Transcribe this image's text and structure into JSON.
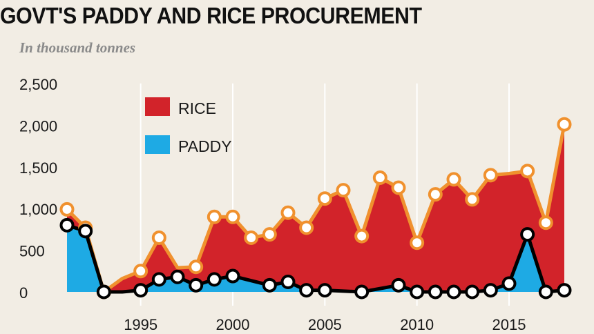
{
  "chart_data": {
    "type": "area",
    "title": "GOVT'S PADDY AND RICE PROCUREMENT",
    "subtitle": "In thousand tonnes",
    "xlabel": "",
    "ylabel": "",
    "ylim": [
      0,
      2500
    ],
    "xlim": [
      1991,
      2018
    ],
    "yticks": [
      {
        "value": 0,
        "label": "0"
      },
      {
        "value": 500,
        "label": "500"
      },
      {
        "value": 1000,
        "label": "1,000"
      },
      {
        "value": 1500,
        "label": "1,500"
      },
      {
        "value": 2000,
        "label": "2,000"
      },
      {
        "value": 2500,
        "label": "2,500"
      }
    ],
    "xticks": [
      1995,
      2000,
      2005,
      2010,
      2015
    ],
    "grid": "vertical",
    "legend_position": "top-left",
    "series": [
      {
        "name": "RICE",
        "color": "#d2232a",
        "line_color": "#f0912e",
        "points": [
          {
            "x": 1991,
            "y": 990,
            "marker": true
          },
          {
            "x": 1992,
            "y": 770,
            "marker": true
          },
          {
            "x": 1993,
            "y": 0,
            "marker": true
          },
          {
            "x": 1994,
            "y": 160,
            "marker": false
          },
          {
            "x": 1995,
            "y": 250,
            "marker": true
          },
          {
            "x": 1996,
            "y": 650,
            "marker": true
          },
          {
            "x": 1997,
            "y": 290,
            "marker": false
          },
          {
            "x": 1998,
            "y": 300,
            "marker": true
          },
          {
            "x": 1999,
            "y": 900,
            "marker": true
          },
          {
            "x": 2000,
            "y": 900,
            "marker": true
          },
          {
            "x": 2001,
            "y": 650,
            "marker": true
          },
          {
            "x": 2002,
            "y": 690,
            "marker": true
          },
          {
            "x": 2003,
            "y": 950,
            "marker": true
          },
          {
            "x": 2004,
            "y": 770,
            "marker": true
          },
          {
            "x": 2005,
            "y": 1120,
            "marker": true
          },
          {
            "x": 2006,
            "y": 1220,
            "marker": true
          },
          {
            "x": 2007,
            "y": 670,
            "marker": true
          },
          {
            "x": 2008,
            "y": 1370,
            "marker": true
          },
          {
            "x": 2009,
            "y": 1250,
            "marker": true
          },
          {
            "x": 2010,
            "y": 590,
            "marker": true
          },
          {
            "x": 2011,
            "y": 1170,
            "marker": true
          },
          {
            "x": 2012,
            "y": 1350,
            "marker": true
          },
          {
            "x": 2013,
            "y": 1110,
            "marker": true
          },
          {
            "x": 2014,
            "y": 1400,
            "marker": true
          },
          {
            "x": 2015,
            "y": 1420,
            "marker": false
          },
          {
            "x": 2016,
            "y": 1450,
            "marker": true
          },
          {
            "x": 2017,
            "y": 830,
            "marker": true
          },
          {
            "x": 2018,
            "y": 2010,
            "marker": true
          }
        ]
      },
      {
        "name": "PADDY",
        "color": "#1eaae4",
        "line_color": "#000000",
        "points": [
          {
            "x": 1991,
            "y": 800,
            "marker": true
          },
          {
            "x": 1992,
            "y": 730,
            "marker": true
          },
          {
            "x": 1993,
            "y": 0,
            "marker": true
          },
          {
            "x": 1994,
            "y": 0,
            "marker": false
          },
          {
            "x": 1995,
            "y": 20,
            "marker": true
          },
          {
            "x": 1996,
            "y": 150,
            "marker": true
          },
          {
            "x": 1997,
            "y": 180,
            "marker": true
          },
          {
            "x": 1998,
            "y": 80,
            "marker": true
          },
          {
            "x": 1999,
            "y": 150,
            "marker": true
          },
          {
            "x": 2000,
            "y": 190,
            "marker": true
          },
          {
            "x": 2002,
            "y": 80,
            "marker": true
          },
          {
            "x": 2003,
            "y": 120,
            "marker": true
          },
          {
            "x": 2004,
            "y": 20,
            "marker": true
          },
          {
            "x": 2005,
            "y": 20,
            "marker": true
          },
          {
            "x": 2007,
            "y": 0,
            "marker": true
          },
          {
            "x": 2009,
            "y": 80,
            "marker": true
          },
          {
            "x": 2010,
            "y": 0,
            "marker": true
          },
          {
            "x": 2011,
            "y": 0,
            "marker": true
          },
          {
            "x": 2012,
            "y": 0,
            "marker": true
          },
          {
            "x": 2013,
            "y": 0,
            "marker": true
          },
          {
            "x": 2014,
            "y": 20,
            "marker": true
          },
          {
            "x": 2015,
            "y": 100,
            "marker": true
          },
          {
            "x": 2016,
            "y": 690,
            "marker": true
          },
          {
            "x": 2017,
            "y": 0,
            "marker": true
          },
          {
            "x": 2018,
            "y": 20,
            "marker": true
          }
        ]
      }
    ]
  }
}
